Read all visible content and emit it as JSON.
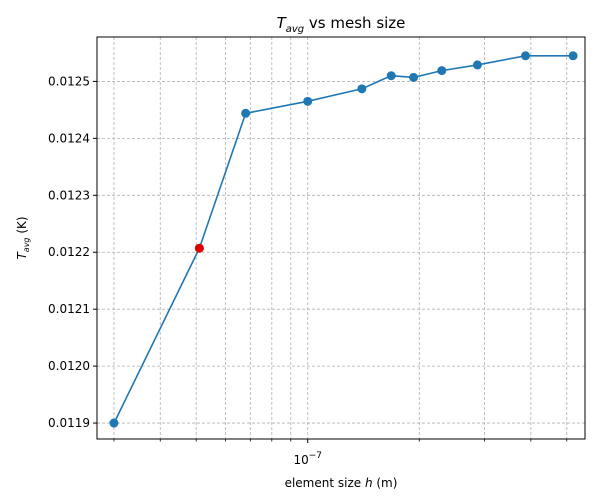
{
  "chart_data": {
    "type": "line",
    "title": {
      "main": "T",
      "sub": "avg",
      "rest": " vs mesh size"
    },
    "xlabel": {
      "prefix": "element size  ",
      "var": "h",
      "suffix": "  (m)"
    },
    "ylabel": {
      "main": "T",
      "sub": "avg",
      "suffix": "  (K)"
    },
    "x_scale": "log",
    "xlim": [
      2.7e-08,
      5.6e-07
    ],
    "ylim": [
      0.011872,
      0.012578
    ],
    "x_major_ticks": [
      {
        "value": 1e-07,
        "base": "10",
        "exp": "−7"
      }
    ],
    "x_minor_ticks": [
      3e-08,
      4e-08,
      5e-08,
      6e-08,
      7e-08,
      8e-08,
      9e-08,
      2e-07,
      3e-07,
      4e-07,
      5e-07
    ],
    "y_ticks": [
      0.0119,
      0.012,
      0.0121,
      0.0122,
      0.0123,
      0.0124,
      0.0125
    ],
    "y_tick_labels": [
      "0.0119",
      "0.0120",
      "0.0121",
      "0.0122",
      "0.0123",
      "0.0124",
      "0.0125"
    ],
    "grid": true,
    "grid_which": "both",
    "series": [
      {
        "color": "#1f77b4",
        "marker": "circle",
        "x": [
          3e-08,
          5.1e-08,
          6.8e-08,
          1e-07,
          1.4e-07,
          1.68e-07,
          1.93e-07,
          2.3e-07,
          2.87e-07,
          3.87e-07,
          5.2e-07
        ],
        "y": [
          0.0119,
          0.012207,
          0.012444,
          0.012465,
          0.012487,
          0.01251,
          0.012507,
          0.012519,
          0.012529,
          0.012545,
          0.012545
        ]
      }
    ],
    "highlight": {
      "x": 5.1e-08,
      "y": 0.012207,
      "color": "#e00000",
      "marker": "circle"
    }
  }
}
